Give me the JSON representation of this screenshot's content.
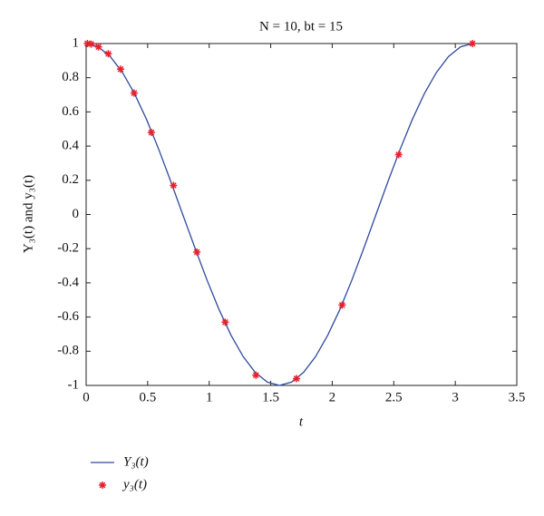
{
  "chart_data": {
    "type": "line",
    "title": "N = 10, bt = 15",
    "x_label": "t",
    "y_label": "Y₃(t) and y₃(t)",
    "xlim": [
      0,
      3.5
    ],
    "xticks": [
      0,
      0.5,
      1,
      1.5,
      2,
      2.5,
      3,
      3.5
    ],
    "ylim": [
      -1,
      1
    ],
    "yticks": [
      -1,
      -0.8,
      -0.6,
      -0.4,
      -0.2,
      0,
      0.2,
      0.4,
      0.6,
      0.8,
      1
    ],
    "grid": false,
    "legend": "below-left",
    "series": [
      {
        "name": "Y₃(t)",
        "style": "line",
        "color": "#2e4a9e",
        "x": [
          0,
          0.098,
          0.196,
          0.295,
          0.393,
          0.491,
          0.589,
          0.687,
          0.785,
          0.884,
          0.982,
          1.08,
          1.178,
          1.276,
          1.374,
          1.473,
          1.571,
          1.669,
          1.767,
          1.865,
          1.963,
          2.062,
          2.16,
          2.258,
          2.356,
          2.454,
          2.553,
          2.651,
          2.749,
          2.847,
          2.945,
          3.043,
          3.142
        ],
        "values": [
          1,
          0.981,
          0.924,
          0.831,
          0.707,
          0.556,
          0.383,
          0.195,
          0,
          -0.195,
          -0.383,
          -0.556,
          -0.707,
          -0.831,
          -0.924,
          -0.981,
          -1,
          -0.981,
          -0.924,
          -0.831,
          -0.707,
          -0.556,
          -0.383,
          -0.195,
          0,
          0.195,
          0.383,
          0.556,
          0.707,
          0.831,
          0.924,
          0.981,
          1
        ]
      },
      {
        "name": "y₃(t)",
        "style": "markers",
        "color": "#e8202a",
        "x": [
          0.01,
          0.04,
          0.1,
          0.18,
          0.28,
          0.39,
          0.53,
          0.71,
          0.9,
          1.13,
          1.38,
          1.71,
          2.08,
          2.54,
          3.14
        ],
        "values": [
          1,
          0.997,
          0.98,
          0.94,
          0.85,
          0.71,
          0.48,
          0.17,
          -0.22,
          -0.63,
          -0.94,
          -0.96,
          -0.53,
          0.35,
          1
        ]
      }
    ]
  }
}
